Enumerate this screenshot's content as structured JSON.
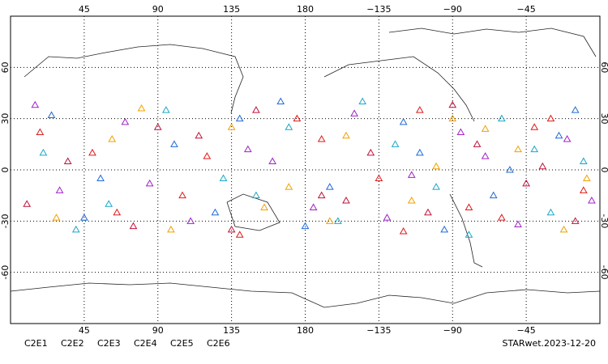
{
  "chart_data": {
    "type": "scatter",
    "marker": "triangle",
    "xlim": [
      0,
      360
    ],
    "ylim": [
      -90,
      90
    ],
    "xticks": [
      45,
      90,
      135,
      180,
      {
        "value": 225,
        "label": "−135"
      },
      {
        "value": 270,
        "label": "−90"
      },
      {
        "value": 315,
        "label": "−45"
      }
    ],
    "yticks": [
      60,
      30,
      0,
      -30,
      -60
    ],
    "grid": true,
    "series": [
      {
        "name": "C2E1",
        "color": "#1aa7c8",
        "x": [
          20,
          60,
          95,
          130,
          170,
          200,
          235,
          260,
          300,
          330,
          350,
          40,
          150,
          215,
          280,
          320
        ],
        "y": [
          10,
          -20,
          35,
          -5,
          25,
          -30,
          15,
          -10,
          30,
          -25,
          5,
          -35,
          -15,
          40,
          -38,
          12
        ]
      },
      {
        "name": "C2E2",
        "color": "#a020c8",
        "x": [
          30,
          70,
          110,
          145,
          185,
          210,
          245,
          275,
          310,
          340,
          15,
          85,
          160,
          230,
          290,
          355
        ],
        "y": [
          -12,
          28,
          -30,
          12,
          -22,
          33,
          -3,
          22,
          -32,
          18,
          38,
          -8,
          5,
          -28,
          8,
          -18
        ]
      },
      {
        "name": "C2E3",
        "color": "#1e6ad8",
        "x": [
          25,
          55,
          100,
          125,
          165,
          195,
          240,
          265,
          305,
          335,
          45,
          140,
          180,
          250,
          295,
          345
        ],
        "y": [
          32,
          -5,
          15,
          -25,
          40,
          -10,
          28,
          -35,
          0,
          20,
          -28,
          30,
          -33,
          10,
          -15,
          35
        ]
      },
      {
        "name": "C2E4",
        "color": "#c0103a",
        "x": [
          35,
          75,
          115,
          150,
          190,
          220,
          255,
          285,
          315,
          345,
          10,
          90,
          135,
          205,
          270,
          325
        ],
        "y": [
          5,
          -33,
          20,
          35,
          -15,
          10,
          -25,
          15,
          -8,
          -30,
          -20,
          25,
          -35,
          -18,
          38,
          2
        ]
      },
      {
        "name": "C2E5",
        "color": "#e01818",
        "x": [
          18,
          50,
          105,
          140,
          175,
          225,
          250,
          280,
          320,
          350,
          65,
          120,
          190,
          240,
          300,
          330
        ],
        "y": [
          22,
          10,
          -15,
          -38,
          30,
          -5,
          35,
          -22,
          25,
          -12,
          -25,
          8,
          18,
          -36,
          -28,
          30
        ]
      },
      {
        "name": "C2E6",
        "color": "#f0a000",
        "x": [
          28,
          62,
          98,
          135,
          170,
          205,
          245,
          270,
          310,
          338,
          80,
          155,
          195,
          260,
          290,
          352
        ],
        "y": [
          -28,
          18,
          -35,
          25,
          -10,
          20,
          -18,
          30,
          12,
          -35,
          36,
          -22,
          -30,
          2,
          24,
          -5
        ]
      }
    ],
    "footer": "STARwet.2023-12-20"
  }
}
